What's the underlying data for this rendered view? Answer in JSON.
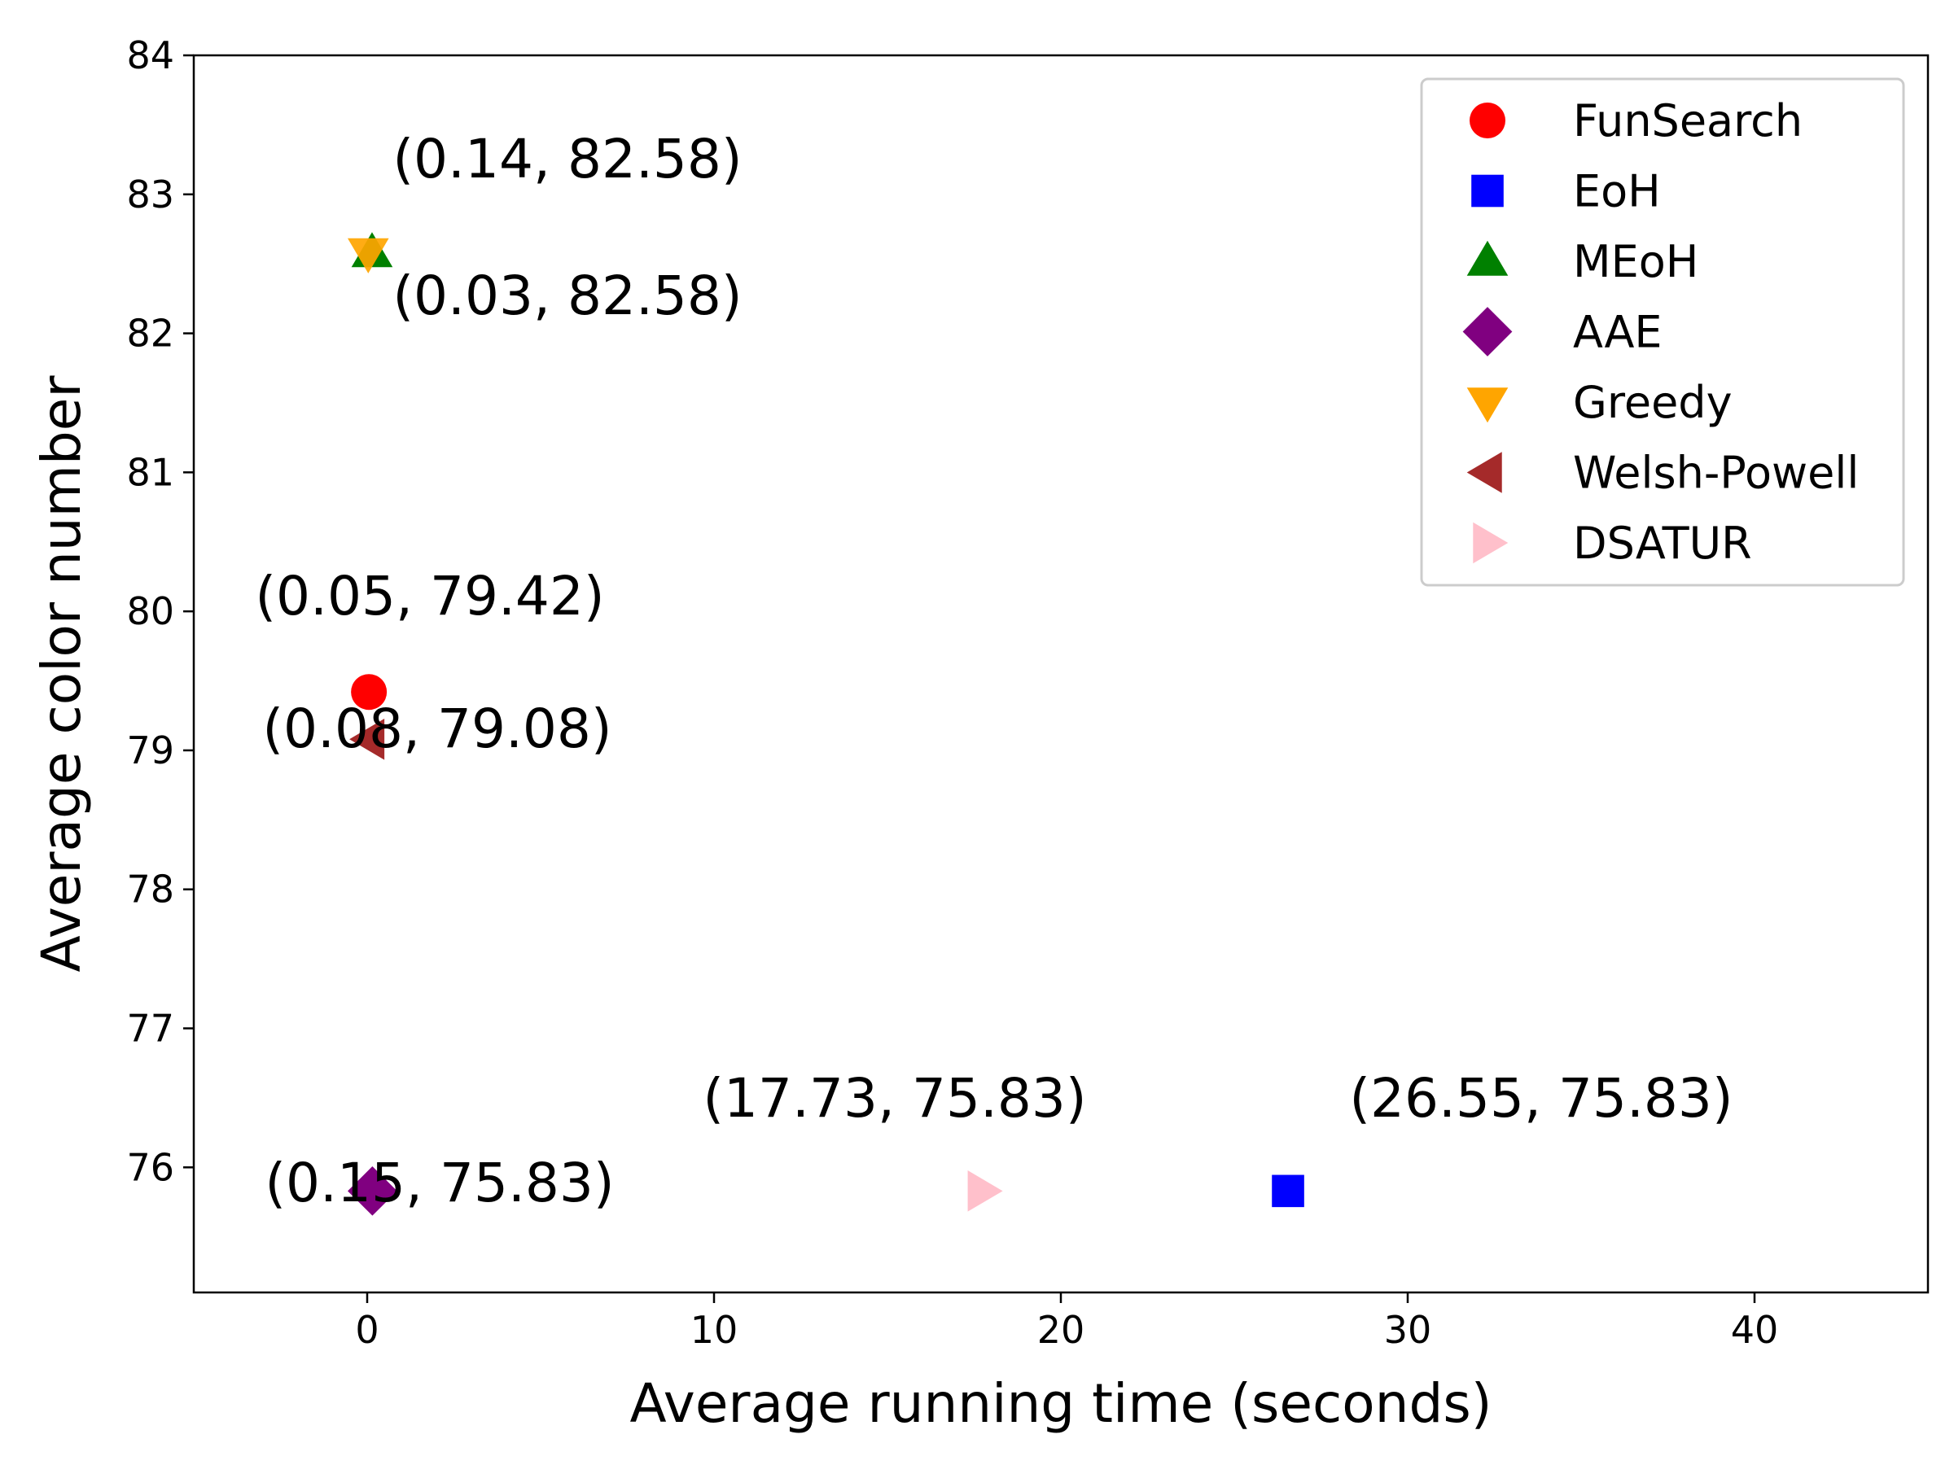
{
  "chart_data": {
    "type": "scatter",
    "title": "",
    "xlabel": "Average running time (seconds)",
    "ylabel": "Average color number",
    "xlim": [
      -5,
      45
    ],
    "ylim": [
      75.1,
      84
    ],
    "xticks": [
      0,
      10,
      20,
      30,
      40
    ],
    "yticks": [
      76,
      77,
      78,
      79,
      80,
      81,
      82,
      83,
      84
    ],
    "grid": false,
    "legend_position": "top-right",
    "series": [
      {
        "name": "FunSearch",
        "marker": "circle",
        "color": "#ff0000",
        "x": 0.05,
        "y": 79.42,
        "label": "(0.05, 79.42)"
      },
      {
        "name": "EoH",
        "marker": "square",
        "color": "#0000ff",
        "x": 26.55,
        "y": 75.83,
        "label": "(26.55, 75.83)"
      },
      {
        "name": "MEoH",
        "marker": "triangle-up",
        "color": "#008000",
        "x": 0.14,
        "y": 82.58,
        "label": "(0.14, 82.58)"
      },
      {
        "name": "AAE",
        "marker": "diamond",
        "color": "#800080",
        "x": 0.15,
        "y": 75.83,
        "label": "(0.15, 75.83)"
      },
      {
        "name": "Greedy",
        "marker": "triangle-down",
        "color": "#ffa500",
        "x": 0.03,
        "y": 82.58,
        "label": "(0.03, 82.58)"
      },
      {
        "name": "Welsh-Powell",
        "marker": "triangle-left",
        "color": "#a52a2a",
        "x": 0.08,
        "y": 79.08,
        "label": "(0.08, 79.08)"
      },
      {
        "name": "DSATUR",
        "marker": "triangle-right",
        "color": "#ffc0cb",
        "x": 17.73,
        "y": 75.83,
        "label": "(17.73, 75.83)"
      }
    ]
  }
}
